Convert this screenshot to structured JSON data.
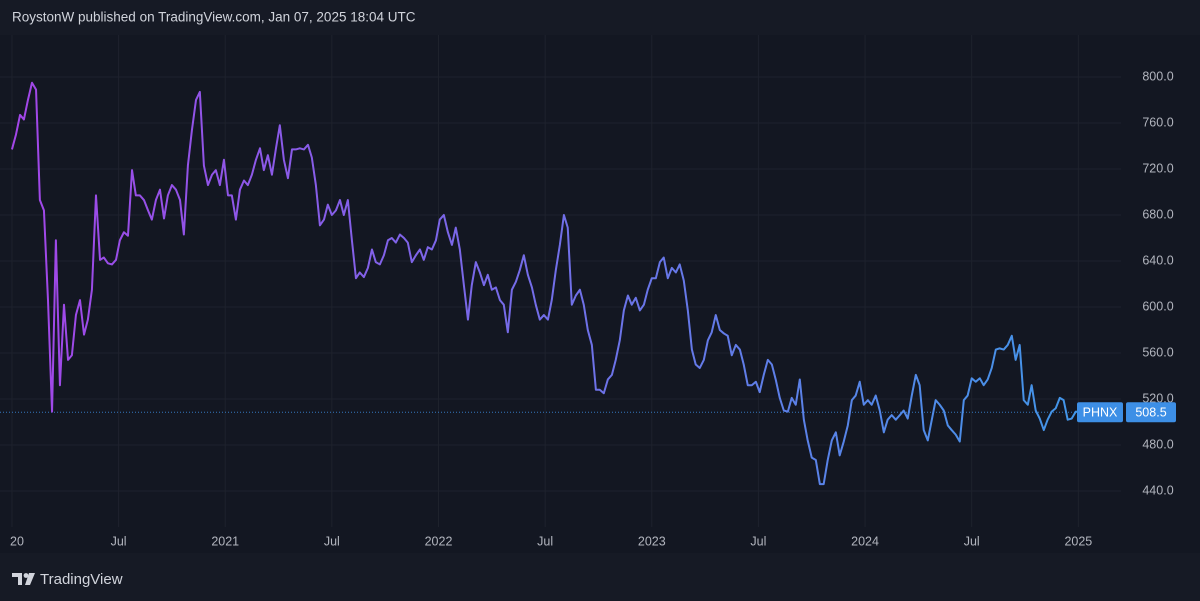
{
  "header": "RoystonW published on TradingView.com, Jan 07, 2025 18:04 UTC",
  "footer_brand": "TradingView",
  "chart_data": {
    "type": "line",
    "x": [
      2020,
      2020.019,
      2020.038,
      2020.056,
      2020.075,
      2020.094,
      2020.113,
      2020.131,
      2020.15,
      2020.169,
      2020.188,
      2020.206,
      2020.225,
      2020.244,
      2020.263,
      2020.281,
      2020.3,
      2020.319,
      2020.338,
      2020.356,
      2020.375,
      2020.394,
      2020.413,
      2020.431,
      2020.45,
      2020.469,
      2020.488,
      2020.506,
      2020.525,
      2020.544,
      2020.563,
      2020.581,
      2020.6,
      2020.619,
      2020.638,
      2020.656,
      2020.675,
      2020.694,
      2020.713,
      2020.731,
      2020.75,
      2020.769,
      2020.788,
      2020.806,
      2020.825,
      2020.844,
      2020.863,
      2020.881,
      2020.9,
      2020.919,
      2020.938,
      2020.956,
      2020.975,
      2020.994,
      2021.013,
      2021.031,
      2021.05,
      2021.069,
      2021.088,
      2021.106,
      2021.125,
      2021.144,
      2021.163,
      2021.181,
      2021.2,
      2021.219,
      2021.238,
      2021.256,
      2021.275,
      2021.294,
      2021.313,
      2021.331,
      2021.35,
      2021.369,
      2021.388,
      2021.406,
      2021.425,
      2021.444,
      2021.463,
      2021.481,
      2021.5,
      2021.519,
      2021.538,
      2021.556,
      2021.575,
      2021.594,
      2021.613,
      2021.631,
      2021.65,
      2021.669,
      2021.688,
      2021.706,
      2021.725,
      2021.744,
      2021.763,
      2021.781,
      2021.8,
      2021.819,
      2021.838,
      2021.856,
      2021.875,
      2021.894,
      2021.913,
      2021.931,
      2021.95,
      2021.969,
      2021.988,
      2022.006,
      2022.025,
      2022.044,
      2022.063,
      2022.081,
      2022.1,
      2022.119,
      2022.138,
      2022.156,
      2022.175,
      2022.194,
      2022.213,
      2022.231,
      2022.25,
      2022.269,
      2022.288,
      2022.306,
      2022.325,
      2022.344,
      2022.363,
      2022.381,
      2022.4,
      2022.419,
      2022.438,
      2022.456,
      2022.475,
      2022.494,
      2022.513,
      2022.531,
      2022.55,
      2022.569,
      2022.588,
      2022.606,
      2022.625,
      2022.644,
      2022.663,
      2022.681,
      2022.7,
      2022.719,
      2022.738,
      2022.756,
      2022.775,
      2022.794,
      2022.813,
      2022.831,
      2022.85,
      2022.869,
      2022.888,
      2022.906,
      2022.925,
      2022.944,
      2022.963,
      2022.981,
      2023,
      2023.019,
      2023.038,
      2023.056,
      2023.075,
      2023.094,
      2023.113,
      2023.131,
      2023.15,
      2023.169,
      2023.188,
      2023.206,
      2023.225,
      2023.244,
      2023.263,
      2023.281,
      2023.3,
      2023.319,
      2023.338,
      2023.356,
      2023.375,
      2023.394,
      2023.413,
      2023.431,
      2023.45,
      2023.469,
      2023.488,
      2023.506,
      2023.525,
      2023.544,
      2023.563,
      2023.581,
      2023.6,
      2023.619,
      2023.638,
      2023.656,
      2023.675,
      2023.694,
      2023.713,
      2023.731,
      2023.75,
      2023.769,
      2023.788,
      2023.806,
      2023.825,
      2023.844,
      2023.863,
      2023.881,
      2023.9,
      2023.919,
      2023.938,
      2023.956,
      2023.975,
      2023.994,
      2024.013,
      2024.031,
      2024.05,
      2024.069,
      2024.088,
      2024.106,
      2024.125,
      2024.144,
      2024.163,
      2024.181,
      2024.2,
      2024.219,
      2024.238,
      2024.256,
      2024.275,
      2024.294,
      2024.313,
      2024.331,
      2024.35,
      2024.369,
      2024.388,
      2024.406,
      2024.425,
      2024.444,
      2024.463,
      2024.481,
      2024.5,
      2024.519,
      2024.538,
      2024.556,
      2024.575,
      2024.594,
      2024.613,
      2024.631,
      2024.65,
      2024.669,
      2024.688,
      2024.706,
      2024.725,
      2024.744,
      2024.763,
      2024.781,
      2024.8,
      2024.819,
      2024.838,
      2024.856,
      2024.875,
      2024.894,
      2024.913,
      2024.931,
      2024.95,
      2024.969,
      2024.988,
      2025.006
    ],
    "series": [
      {
        "name": "PHNX",
        "gradient": [
          "#a445e8",
          "#3e99e8"
        ],
        "badge_color": "#3d8fe6",
        "values": [
          737,
          750,
          767,
          763,
          780,
          795,
          789,
          693,
          684,
          606,
          509,
          658,
          532,
          602,
          554,
          558,
          593,
          606,
          576,
          589,
          615,
          697,
          641,
          643,
          638,
          637,
          641,
          658,
          665,
          662,
          719,
          697,
          697,
          693,
          684,
          676,
          693,
          702,
          677,
          697,
          706,
          702,
          693,
          663,
          723,
          754,
          780,
          787,
          723,
          706,
          715,
          719,
          706,
          728,
          697,
          697,
          676,
          702,
          710,
          706,
          715,
          728,
          738,
          719,
          732,
          715,
          738,
          758,
          728,
          712,
          737,
          737,
          738,
          737,
          741,
          730,
          706,
          671,
          676,
          689,
          680,
          684,
          693,
          680,
          693,
          658,
          625,
          630,
          626,
          634,
          650,
          639,
          637,
          645,
          658,
          660,
          656,
          663,
          660,
          656,
          639,
          645,
          650,
          641,
          652,
          650,
          658,
          676,
          680,
          665,
          654,
          669,
          650,
          619,
          589,
          619,
          639,
          630,
          619,
          628,
          615,
          617,
          606,
          602,
          578,
          615,
          622,
          632,
          645,
          628,
          617,
          602,
          589,
          593,
          589,
          606,
          632,
          654,
          680,
          669,
          602,
          610,
          615,
          602,
          580,
          567,
          528,
          528,
          525,
          537,
          541,
          554,
          571,
          597,
          610,
          602,
          608,
          597,
          602,
          615,
          625,
          625,
          639,
          643,
          625,
          634,
          630,
          637,
          623,
          597,
          563,
          550,
          547,
          554,
          571,
          578,
          593,
          580,
          577,
          575,
          558,
          567,
          563,
          550,
          532,
          532,
          535,
          526,
          541,
          554,
          550,
          537,
          521,
          510,
          509,
          521,
          515,
          537,
          502,
          484,
          469,
          467,
          446,
          446,
          467,
          484,
          491,
          471,
          483,
          497,
          519,
          523,
          535,
          515,
          519,
          515,
          523,
          510,
          491,
          502,
          506,
          502,
          506,
          510,
          503,
          523,
          541,
          532,
          493,
          484,
          502,
          519,
          515,
          510,
          497,
          493,
          489,
          483,
          519,
          523,
          538,
          535,
          538,
          532,
          537,
          547,
          563,
          564,
          563,
          567,
          575,
          554,
          567,
          519,
          515,
          532,
          510,
          503,
          493,
          502,
          509,
          512,
          521,
          519,
          502,
          503,
          509,
          508.5
        ]
      }
    ],
    "xlim": [
      2019.944,
      2025.2
    ],
    "xticks": [
      {
        "value": 2020,
        "label": "20"
      },
      {
        "value": 2020.5,
        "label": "Jul"
      },
      2021,
      {
        "value": 2021.5,
        "label": "Jul"
      },
      2022,
      {
        "value": 2022.5,
        "label": "Jul"
      },
      2023,
      {
        "value": 2023.5,
        "label": "Jul"
      },
      2024,
      {
        "value": 2024.5,
        "label": "Jul"
      },
      2025
    ],
    "ylim": [
      408.7,
      836.5
    ],
    "yticks": [
      {
        "value": 440,
        "label": "440.0"
      },
      {
        "value": 480,
        "label": "480.0"
      },
      {
        "value": 520,
        "label": "520.0"
      },
      {
        "value": 560,
        "label": "560.0"
      },
      {
        "value": 600,
        "label": "600.0"
      },
      {
        "value": 640,
        "label": "640.0"
      },
      {
        "value": 680,
        "label": "680.0"
      },
      {
        "value": 720,
        "label": "720.0"
      },
      {
        "value": 760,
        "label": "760.0"
      },
      {
        "value": 800,
        "label": "800.0"
      }
    ],
    "grid": true,
    "last_price_line": true
  }
}
